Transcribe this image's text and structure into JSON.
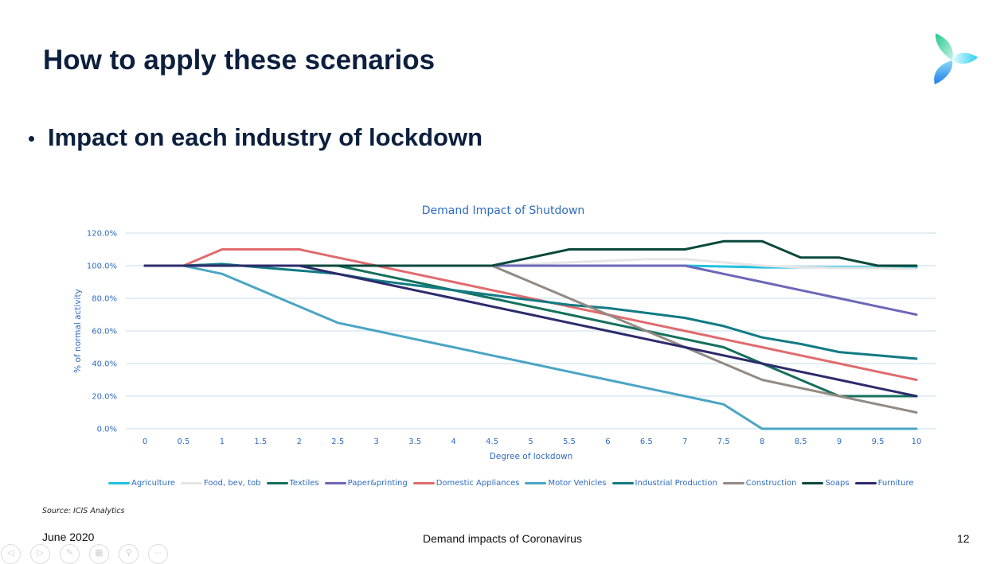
{
  "slide": {
    "title": "How to apply these scenarios",
    "bullet": "Impact on each industry of lockdown",
    "source": "Source: ICIS Analytics",
    "footer_date": "June 2020",
    "footer_title": "Demand impacts of Coronavirus",
    "page_number": "12"
  },
  "controls": [
    {
      "name": "previous-slide",
      "icon": "◁"
    },
    {
      "name": "next-slide",
      "icon": "▷"
    },
    {
      "name": "pen",
      "icon": "✎"
    },
    {
      "name": "slide-overview",
      "icon": "▦"
    },
    {
      "name": "zoom",
      "icon": "⚲"
    },
    {
      "name": "more-options",
      "icon": "···"
    }
  ],
  "chart_data": {
    "type": "line",
    "title": "Demand Impact of Shutdown",
    "xlabel": "Degree of lockdown",
    "ylabel": "% of normal activity",
    "x": [
      0,
      0.5,
      1,
      1.5,
      2,
      2.5,
      3,
      3.5,
      4,
      4.5,
      5,
      5.5,
      6,
      6.5,
      7,
      7.5,
      8,
      8.5,
      9,
      9.5,
      10
    ],
    "x_tick_labels": [
      "0",
      "0.5",
      "1",
      "1.5",
      "2",
      "2.5",
      "3",
      "3.5",
      "4",
      "4.5",
      "5",
      "5.5",
      "6",
      "6.5",
      "7",
      "7.5",
      "8",
      "8.5",
      "9",
      "9.5",
      "10"
    ],
    "ylim": [
      0,
      120
    ],
    "y_ticks": [
      0,
      20,
      40,
      60,
      80,
      100,
      120
    ],
    "y_tick_labels": [
      "0.0%",
      "20.0%",
      "40.0%",
      "60.0%",
      "80.0%",
      "100.0%",
      "120.0%"
    ],
    "grid": "horizontal",
    "legend_position": "bottom",
    "series": [
      {
        "name": "Agriculture",
        "color": "#1fc2e0",
        "values": [
          100,
          100,
          100,
          100,
          100,
          100,
          100,
          100,
          100,
          100,
          100,
          100,
          100,
          100,
          100,
          99.5,
          99,
          99,
          99,
          99,
          99
        ]
      },
      {
        "name": "Food, bev, tob",
        "color": "#e6e6e6",
        "values": [
          100,
          100,
          100,
          100,
          100,
          100,
          100,
          100,
          100,
          100,
          101,
          102,
          103,
          104,
          104,
          102,
          100,
          99,
          98.5,
          98.5,
          98
        ]
      },
      {
        "name": "Textiles",
        "color": "#16705e",
        "values": [
          100,
          100,
          100,
          100,
          100,
          100,
          95,
          90,
          85,
          80,
          75,
          70,
          65,
          60,
          55,
          50,
          40,
          30,
          20,
          20,
          20
        ]
      },
      {
        "name": "Paper&printing",
        "color": "#6d67b8",
        "values": [
          100,
          100,
          100,
          100,
          100,
          100,
          100,
          100,
          100,
          100,
          100,
          100,
          100,
          100,
          100,
          95,
          90,
          85,
          80,
          75,
          70
        ]
      },
      {
        "name": "Domestic Appliances",
        "color": "#e06b6e",
        "values": [
          100,
          100,
          110,
          110,
          110,
          105,
          100,
          95,
          90,
          85,
          80,
          75,
          70,
          65,
          60,
          55,
          50,
          45,
          40,
          35,
          30
        ]
      },
      {
        "name": "Motor Vehicles",
        "color": "#4aa5c4",
        "values": [
          100,
          100,
          95,
          85,
          75,
          65,
          60,
          55,
          50,
          45,
          40,
          35,
          30,
          25,
          20,
          15,
          0,
          0,
          0,
          0,
          0
        ]
      },
      {
        "name": "Industrial Production",
        "color": "#127b84",
        "values": [
          100,
          100,
          101,
          99,
          97,
          95,
          91,
          88,
          85,
          82,
          79,
          76,
          74,
          71,
          68,
          63,
          56,
          52,
          47,
          45,
          43
        ]
      },
      {
        "name": "Construction",
        "color": "#938a82",
        "values": [
          100,
          100,
          100,
          100,
          100,
          100,
          100,
          100,
          100,
          100,
          90,
          80,
          70,
          60,
          50,
          40,
          30,
          25,
          20,
          15,
          10
        ]
      },
      {
        "name": "Soaps",
        "color": "#0b483d",
        "values": [
          100,
          100,
          100,
          100,
          100,
          100,
          100,
          100,
          100,
          100,
          105,
          110,
          110,
          110,
          110,
          115,
          115,
          105,
          105,
          100,
          100
        ]
      },
      {
        "name": "Furniture",
        "color": "#2d2b6c",
        "values": [
          100,
          100,
          100,
          100,
          100,
          95,
          90,
          85,
          80,
          75,
          70,
          65,
          60,
          55,
          50,
          45,
          40,
          35,
          30,
          25,
          20
        ]
      }
    ]
  }
}
